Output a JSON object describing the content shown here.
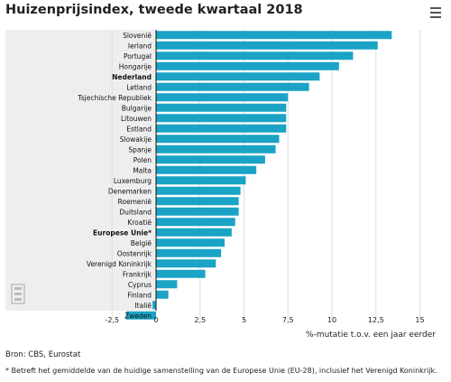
{
  "header": {
    "title": "Huizenprijsindex, tweede kwartaal 2018",
    "menu_icon": "hamburger-menu-icon"
  },
  "chart_data": {
    "type": "bar",
    "orientation": "horizontal",
    "title": "Huizenprijsindex, tweede kwartaal 2018",
    "xlabel": "%-mutatie t.o.v. een jaar eerder",
    "xlim": [
      -2.5,
      15
    ],
    "xticks": [
      -2.5,
      0,
      2.5,
      5,
      7.5,
      10,
      12.5,
      15
    ],
    "xtick_labels": [
      "-2,5",
      "0",
      "2,5",
      "5",
      "7,5",
      "10",
      "12,5",
      "15"
    ],
    "grid": true,
    "bar_color": "#1ba3c6",
    "highlight_bold": [
      "Nederland",
      "Europese Unie*"
    ],
    "categories": [
      "Slovenië",
      "Ierland",
      "Portugal",
      "Hongarije",
      "Nederland",
      "Letland",
      "Tsjechische Republiek",
      "Bulgarije",
      "Litouwen",
      "Estland",
      "Slowakije",
      "Spanje",
      "Polen",
      "Malta",
      "Luxemburg",
      "Denemarken",
      "Roemenië",
      "Duitsland",
      "Kroatië",
      "Europese Unie*",
      "België",
      "Oostenrijk",
      "Verenigd Koninkrijk",
      "Frankrijk",
      "Cyprus",
      "Finland",
      "Italië",
      "Zweden"
    ],
    "values": [
      13.4,
      12.6,
      11.2,
      10.4,
      9.3,
      8.7,
      7.5,
      7.4,
      7.4,
      7.4,
      7.0,
      6.8,
      6.2,
      5.7,
      5.1,
      4.8,
      4.7,
      4.7,
      4.5,
      4.3,
      3.9,
      3.7,
      3.4,
      2.8,
      1.2,
      0.7,
      -0.2,
      -1.7
    ]
  },
  "footer": {
    "source": "Bron: CBS, Eurostat",
    "footnote": "* Betreft het gemiddelde van de huidige samenstelling van de Europese Unie (EU-28), inclusief het Verenigd Koninkrijk."
  }
}
